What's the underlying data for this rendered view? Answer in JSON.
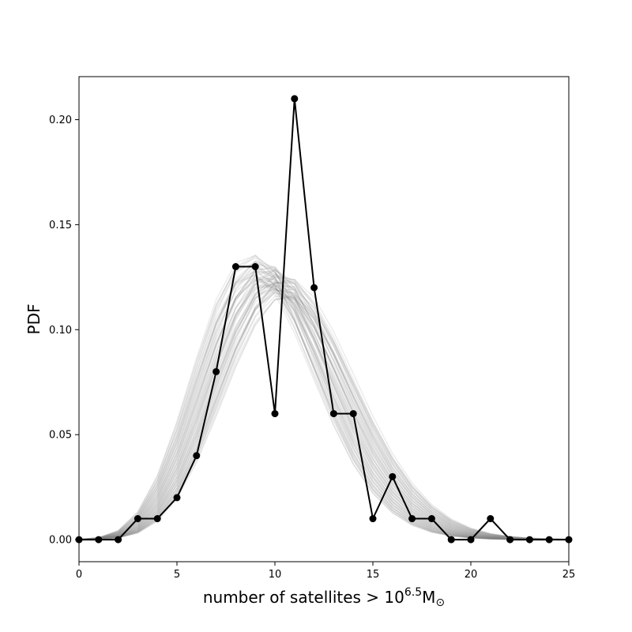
{
  "chart_data": {
    "type": "line",
    "title": "",
    "xlabel": "number of satellites > 10",
    "xlabel_exponent": "6.5",
    "xlabel_unit": "M",
    "xlabel_unit_subscript": "⊙",
    "ylabel": "PDF",
    "xlim": [
      0,
      25
    ],
    "ylim": [
      -0.0105,
      0.2205
    ],
    "x_ticks": [
      0,
      5,
      10,
      15,
      20,
      25
    ],
    "x_tick_labels": [
      "0",
      "5",
      "10",
      "15",
      "20",
      "25"
    ],
    "y_ticks": [
      0.0,
      0.05,
      0.1,
      0.15,
      0.2
    ],
    "y_tick_labels": [
      "0.00",
      "0.05",
      "0.10",
      "0.15",
      "0.20"
    ],
    "grid": false,
    "legend": "none",
    "series": [
      {
        "style": "black line with circle markers",
        "color": "#000000",
        "x": [
          0,
          1,
          2,
          3,
          4,
          5,
          6,
          7,
          8,
          9,
          10,
          11,
          12,
          13,
          14,
          15,
          16,
          17,
          18,
          19,
          20,
          21,
          22,
          23,
          24,
          25
        ],
        "y": [
          0.0,
          0.0,
          0.0,
          0.01,
          0.01,
          0.02,
          0.04,
          0.08,
          0.13,
          0.13,
          0.06,
          0.21,
          0.12,
          0.06,
          0.06,
          0.01,
          0.03,
          0.01,
          0.01,
          0.0,
          0.0,
          0.01,
          0.0,
          0.0,
          0.0,
          0.0
        ]
      }
    ],
    "model_band": {
      "style": "many faint grey Poisson-like curves",
      "color": "#808080",
      "opacity": 0.15,
      "curve_count": 60,
      "mean_range": [
        9.2,
        11.2
      ],
      "peak_range": [
        0.125,
        0.145
      ]
    }
  }
}
